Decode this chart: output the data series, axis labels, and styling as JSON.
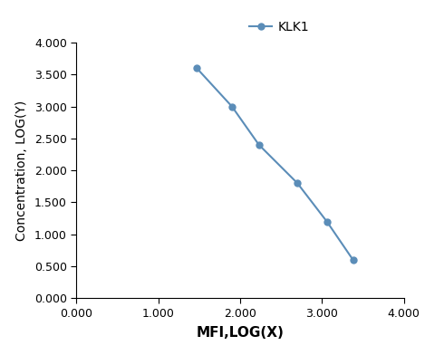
{
  "x": [
    1.47,
    1.9,
    2.23,
    2.7,
    3.06,
    3.38
  ],
  "y": [
    3.6,
    3.0,
    2.4,
    1.8,
    1.2,
    0.6
  ],
  "line_color": "#5b8db8",
  "marker_color": "#5b8db8",
  "marker_style": "o",
  "marker_size": 5,
  "line_width": 1.5,
  "legend_label": "KLK1",
  "xlabel": "MFI,LOG(X)",
  "ylabel": "Concentration, LOG(Y)",
  "xlim": [
    0.0,
    4.0
  ],
  "ylim": [
    0.0,
    4.0
  ],
  "xticks": [
    0.0,
    1.0,
    2.0,
    3.0,
    4.0
  ],
  "yticks": [
    0.0,
    0.5,
    1.0,
    1.5,
    2.0,
    2.5,
    3.0,
    3.5,
    4.0
  ],
  "xlabel_fontsize": 11,
  "ylabel_fontsize": 10,
  "legend_fontsize": 10,
  "tick_label_fontsize": 9,
  "background_color": "#ffffff"
}
